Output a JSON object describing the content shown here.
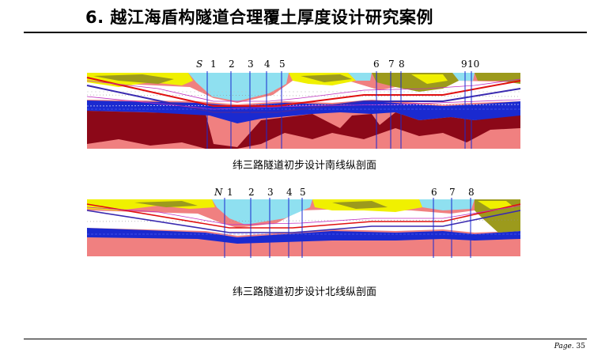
{
  "slide": {
    "title": "6. 越江海盾构隧道合理覆土厚度设计研究案例",
    "page_prefix": "Page.",
    "page_number": "35"
  },
  "south_profile": {
    "caption": "纬三路隧道初步设计南线纵剖面",
    "markers": [
      "S",
      "1",
      "2",
      "3",
      "4",
      "5",
      "6",
      "7",
      "8",
      "9",
      "10"
    ]
  },
  "north_profile": {
    "caption": "纬三路隧道初步设计北线纵剖面",
    "markers": [
      "N",
      "1",
      "2",
      "3",
      "4",
      "5",
      "6",
      "7",
      "8"
    ]
  },
  "colors": {
    "water": "#8fe0f0",
    "soft_soil": "#ffffff",
    "sand": "#f0f000",
    "clay_olive": "#9c9a1c",
    "gravel_blue": "#1a2ad0",
    "rock_dark": "#8c0818",
    "rock_pink": "#f08080",
    "tunnel_red": "#e01010",
    "tunnel_purple": "#3a2ab0",
    "boundary_magenta": "#c030c0"
  }
}
